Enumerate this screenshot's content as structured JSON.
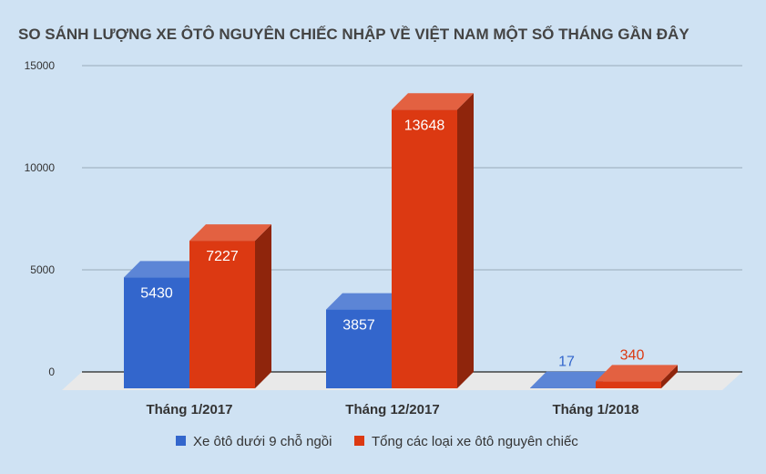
{
  "chart_data": {
    "type": "bar",
    "title": "SO SÁNH LƯỢNG XE ÔTÔ NGUYÊN CHIẾC NHẬP VỀ VIỆT NAM MỘT SỐ THÁNG GẦN ĐÂY",
    "categories": [
      "Tháng 1/2017",
      "Tháng 12/2017",
      "Tháng 1/2018"
    ],
    "series": [
      {
        "name": "Xe ôtô dưới 9 chỗ ngồi",
        "values": [
          5430,
          3857,
          17
        ],
        "color": "#3366cc",
        "label_color_inside": "#ffffff",
        "label_color_outside": "#3366cc"
      },
      {
        "name": "Tổng các loại xe ôtô nguyên chiếc",
        "values": [
          7227,
          13648,
          340
        ],
        "color": "#dc3912",
        "label_color_inside": "#ffffff",
        "label_color_outside": "#dc3912"
      }
    ],
    "y_ticks": [
      "0",
      "5000",
      "10000",
      "15000"
    ],
    "ylim": [
      0,
      15000
    ],
    "grid": true,
    "legend": "bottom",
    "style": "3d"
  },
  "colors": {
    "background": "#cfe2f3",
    "floor": "#e9e9e9",
    "grid": "#9aa9b8"
  }
}
